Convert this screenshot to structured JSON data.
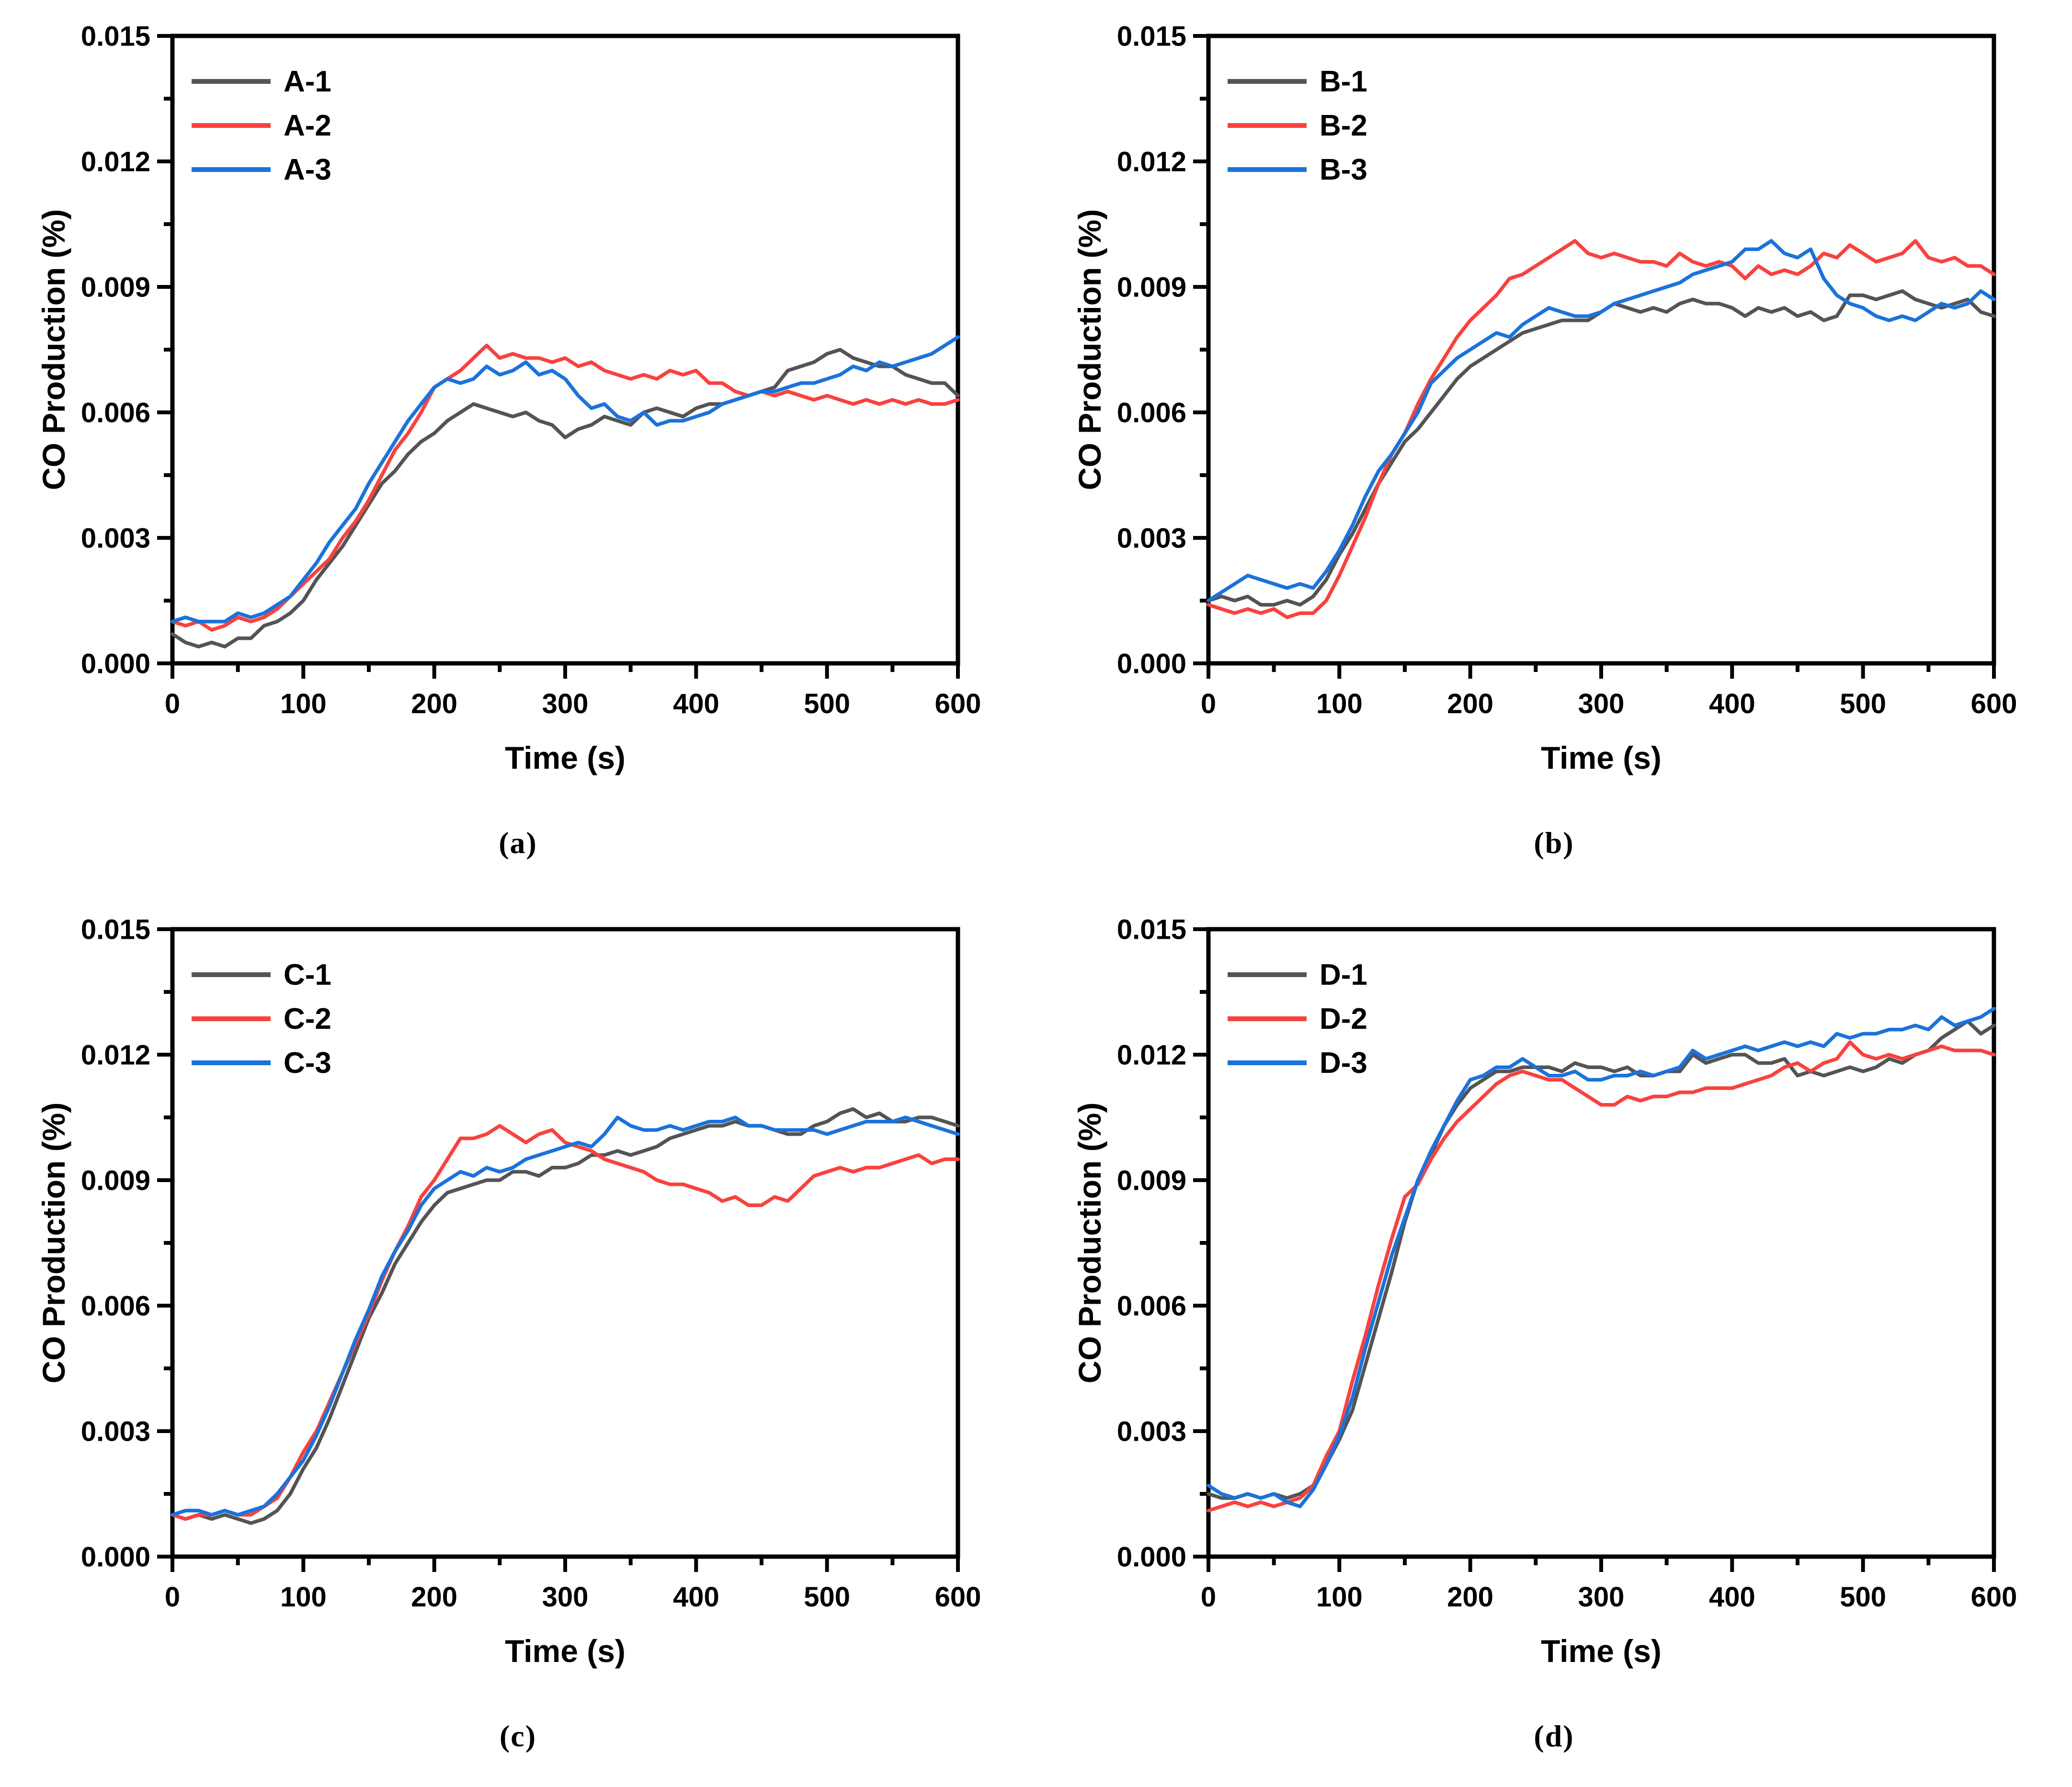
{
  "figure": {
    "background": "#FFFFFF",
    "frame_color": "#000000",
    "text_color": "#000000"
  },
  "chart_data": [
    {
      "type": "line",
      "panel": "a",
      "caption": "(a)",
      "title": "",
      "xlabel": "Time (s)",
      "ylabel": "CO Production (%)",
      "xlim": [
        0,
        600
      ],
      "ylim": [
        0,
        0.015
      ],
      "xticks": [
        0,
        100,
        200,
        300,
        400,
        500,
        600
      ],
      "xtick_labels": [
        "0",
        "100",
        "200",
        "300",
        "400",
        "500",
        "600"
      ],
      "xticks_minor": [
        50,
        150,
        250,
        350,
        450,
        550
      ],
      "yticks": [
        0,
        0.003,
        0.006,
        0.009,
        0.012,
        0.015
      ],
      "ytick_labels": [
        "0.000",
        "0.003",
        "0.006",
        "0.009",
        "0.012",
        "0.015"
      ],
      "yticks_minor": [
        0.0015,
        0.0045,
        0.0075,
        0.0105,
        0.0135
      ],
      "grid": false,
      "legend_position": "top-left",
      "x_start": 0,
      "x_step": 10,
      "y_scale": 0.0001,
      "series": [
        {
          "name": "A-1",
          "color": "#545454",
          "y_x1e4": [
            7,
            5,
            4,
            5,
            4,
            6,
            6,
            9,
            10,
            12,
            15,
            20,
            24,
            28,
            33,
            38,
            43,
            46,
            50,
            53,
            55,
            58,
            60,
            62,
            61,
            60,
            59,
            60,
            58,
            57,
            54,
            56,
            57,
            59,
            58,
            57,
            60,
            61,
            60,
            59,
            61,
            62,
            62,
            63,
            64,
            65,
            66,
            70,
            71,
            72,
            74,
            75,
            73,
            72,
            71,
            71,
            69,
            68,
            67,
            67,
            64
          ]
        },
        {
          "name": "A-2",
          "color": "#F8423E",
          "y_x1e4": [
            10,
            9,
            10,
            8,
            9,
            11,
            10,
            11,
            13,
            16,
            19,
            22,
            25,
            30,
            34,
            39,
            45,
            51,
            55,
            60,
            66,
            68,
            70,
            73,
            76,
            73,
            74,
            73,
            73,
            72,
            73,
            71,
            72,
            70,
            69,
            68,
            69,
            68,
            70,
            69,
            70,
            67,
            67,
            65,
            64,
            65,
            64,
            65,
            64,
            63,
            64,
            63,
            62,
            63,
            62,
            63,
            62,
            63,
            62,
            62,
            63
          ]
        },
        {
          "name": "A-3",
          "color": "#1B72DB",
          "y_x1e4": [
            10,
            11,
            10,
            10,
            10,
            12,
            11,
            12,
            14,
            16,
            20,
            24,
            29,
            33,
            37,
            43,
            48,
            53,
            58,
            62,
            66,
            68,
            67,
            68,
            71,
            69,
            70,
            72,
            69,
            70,
            68,
            64,
            61,
            62,
            59,
            58,
            60,
            57,
            58,
            58,
            59,
            60,
            62,
            63,
            64,
            65,
            65,
            66,
            67,
            67,
            68,
            69,
            71,
            70,
            72,
            71,
            72,
            73,
            74,
            76,
            78
          ]
        }
      ]
    },
    {
      "type": "line",
      "panel": "b",
      "caption": "(b)",
      "title": "",
      "xlabel": "Time (s)",
      "ylabel": "CO Production (%)",
      "xlim": [
        0,
        600
      ],
      "ylim": [
        0,
        0.015
      ],
      "xticks": [
        0,
        100,
        200,
        300,
        400,
        500,
        600
      ],
      "xtick_labels": [
        "0",
        "100",
        "200",
        "300",
        "400",
        "500",
        "600"
      ],
      "xticks_minor": [
        50,
        150,
        250,
        350,
        450,
        550
      ],
      "yticks": [
        0,
        0.003,
        0.006,
        0.009,
        0.012,
        0.015
      ],
      "ytick_labels": [
        "0.000",
        "0.003",
        "0.006",
        "0.009",
        "0.012",
        "0.015"
      ],
      "yticks_minor": [
        0.0015,
        0.0045,
        0.0075,
        0.0105,
        0.0135
      ],
      "grid": false,
      "legend_position": "top-left",
      "x_start": 0,
      "x_step": 10,
      "y_scale": 0.0001,
      "series": [
        {
          "name": "B-1",
          "color": "#545454",
          "y_x1e4": [
            15,
            16,
            15,
            16,
            14,
            14,
            15,
            14,
            16,
            20,
            26,
            31,
            37,
            43,
            48,
            53,
            56,
            60,
            64,
            68,
            71,
            73,
            75,
            77,
            79,
            80,
            81,
            82,
            82,
            82,
            84,
            86,
            85,
            84,
            85,
            84,
            86,
            87,
            86,
            86,
            85,
            83,
            85,
            84,
            85,
            83,
            84,
            82,
            83,
            88,
            88,
            87,
            88,
            89,
            87,
            86,
            85,
            86,
            87,
            84,
            83
          ]
        },
        {
          "name": "B-2",
          "color": "#F8423E",
          "y_x1e4": [
            14,
            13,
            12,
            13,
            12,
            13,
            11,
            12,
            12,
            15,
            21,
            28,
            35,
            43,
            50,
            55,
            62,
            68,
            73,
            78,
            82,
            85,
            88,
            92,
            93,
            95,
            97,
            99,
            101,
            98,
            97,
            98,
            97,
            96,
            96,
            95,
            98,
            96,
            95,
            96,
            95,
            92,
            95,
            93,
            94,
            93,
            95,
            98,
            97,
            100,
            98,
            96,
            97,
            98,
            101,
            97,
            96,
            97,
            95,
            95,
            93
          ]
        },
        {
          "name": "B-3",
          "color": "#1B72DB",
          "y_x1e4": [
            15,
            17,
            19,
            21,
            20,
            19,
            18,
            19,
            18,
            22,
            27,
            33,
            40,
            46,
            50,
            55,
            60,
            67,
            70,
            73,
            75,
            77,
            79,
            78,
            81,
            83,
            85,
            84,
            83,
            83,
            84,
            86,
            87,
            88,
            89,
            90,
            91,
            93,
            94,
            95,
            96,
            99,
            99,
            101,
            98,
            97,
            99,
            92,
            88,
            86,
            85,
            83,
            82,
            83,
            82,
            84,
            86,
            85,
            86,
            89,
            87
          ]
        }
      ]
    },
    {
      "type": "line",
      "panel": "c",
      "caption": "(c)",
      "title": "",
      "xlabel": "Time (s)",
      "ylabel": "CO Production (%)",
      "xlim": [
        0,
        600
      ],
      "ylim": [
        0,
        0.015
      ],
      "xticks": [
        0,
        100,
        200,
        300,
        400,
        500,
        600
      ],
      "xtick_labels": [
        "0",
        "100",
        "200",
        "300",
        "400",
        "500",
        "600"
      ],
      "xticks_minor": [
        50,
        150,
        250,
        350,
        450,
        550
      ],
      "yticks": [
        0,
        0.003,
        0.006,
        0.009,
        0.012,
        0.015
      ],
      "ytick_labels": [
        "0.000",
        "0.003",
        "0.006",
        "0.009",
        "0.012",
        "0.015"
      ],
      "yticks_minor": [
        0.0015,
        0.0045,
        0.0075,
        0.0105,
        0.0135
      ],
      "grid": false,
      "legend_position": "top-left",
      "x_start": 0,
      "x_step": 10,
      "y_scale": 0.0001,
      "series": [
        {
          "name": "C-1",
          "color": "#545454",
          "y_x1e4": [
            10,
            9,
            10,
            9,
            10,
            9,
            8,
            9,
            11,
            15,
            21,
            26,
            33,
            41,
            49,
            57,
            63,
            70,
            75,
            80,
            84,
            87,
            88,
            89,
            90,
            90,
            92,
            92,
            91,
            93,
            93,
            94,
            96,
            96,
            97,
            96,
            97,
            98,
            100,
            101,
            102,
            103,
            103,
            104,
            103,
            103,
            102,
            101,
            101,
            103,
            104,
            106,
            107,
            105,
            106,
            104,
            104,
            105,
            105,
            104,
            103
          ]
        },
        {
          "name": "C-2",
          "color": "#F8423E",
          "y_x1e4": [
            10,
            9,
            10,
            10,
            11,
            10,
            10,
            12,
            14,
            19,
            25,
            30,
            37,
            44,
            51,
            58,
            66,
            73,
            79,
            86,
            90,
            95,
            100,
            100,
            101,
            103,
            101,
            99,
            101,
            102,
            99,
            98,
            97,
            95,
            94,
            93,
            92,
            90,
            89,
            89,
            88,
            87,
            85,
            86,
            84,
            84,
            86,
            85,
            88,
            91,
            92,
            93,
            92,
            93,
            93,
            94,
            95,
            96,
            94,
            95,
            95
          ]
        },
        {
          "name": "C-3",
          "color": "#1B72DB",
          "y_x1e4": [
            10,
            11,
            11,
            10,
            11,
            10,
            11,
            12,
            15,
            19,
            23,
            29,
            36,
            44,
            52,
            59,
            67,
            73,
            78,
            84,
            88,
            90,
            92,
            91,
            93,
            92,
            93,
            95,
            96,
            97,
            98,
            99,
            98,
            101,
            105,
            103,
            102,
            102,
            103,
            102,
            103,
            104,
            104,
            105,
            103,
            103,
            102,
            102,
            102,
            102,
            101,
            102,
            103,
            104,
            104,
            104,
            105,
            104,
            103,
            102,
            101
          ]
        }
      ]
    },
    {
      "type": "line",
      "panel": "d",
      "caption": "(d)",
      "title": "",
      "xlabel": "Time (s)",
      "ylabel": "CO Production (%)",
      "xlim": [
        0,
        600
      ],
      "ylim": [
        0,
        0.015
      ],
      "xticks": [
        0,
        100,
        200,
        300,
        400,
        500,
        600
      ],
      "xtick_labels": [
        "0",
        "100",
        "200",
        "300",
        "400",
        "500",
        "600"
      ],
      "xticks_minor": [
        50,
        150,
        250,
        350,
        450,
        550
      ],
      "yticks": [
        0,
        0.003,
        0.006,
        0.009,
        0.012,
        0.015
      ],
      "ytick_labels": [
        "0.000",
        "0.003",
        "0.006",
        "0.009",
        "0.012",
        "0.015"
      ],
      "yticks_minor": [
        0.0015,
        0.0045,
        0.0075,
        0.0105,
        0.0135
      ],
      "grid": false,
      "legend_position": "top-left",
      "x_start": 0,
      "x_step": 10,
      "y_scale": 0.0001,
      "series": [
        {
          "name": "D-1",
          "color": "#545454",
          "y_x1e4": [
            15,
            14,
            14,
            15,
            14,
            15,
            14,
            15,
            17,
            22,
            28,
            35,
            46,
            57,
            68,
            80,
            90,
            96,
            103,
            108,
            112,
            114,
            116,
            116,
            117,
            117,
            117,
            116,
            118,
            117,
            117,
            116,
            117,
            115,
            115,
            116,
            116,
            120,
            118,
            119,
            120,
            120,
            118,
            118,
            119,
            115,
            116,
            115,
            116,
            117,
            116,
            117,
            119,
            118,
            120,
            121,
            124,
            126,
            128,
            125,
            127
          ]
        },
        {
          "name": "D-2",
          "color": "#F8423E",
          "y_x1e4": [
            11,
            12,
            13,
            12,
            13,
            12,
            13,
            14,
            17,
            24,
            30,
            42,
            53,
            65,
            76,
            86,
            89,
            95,
            100,
            104,
            107,
            110,
            113,
            115,
            116,
            115,
            114,
            114,
            112,
            110,
            108,
            108,
            110,
            109,
            110,
            110,
            111,
            111,
            112,
            112,
            112,
            113,
            114,
            115,
            117,
            118,
            116,
            118,
            119,
            123,
            120,
            119,
            120,
            119,
            120,
            121,
            122,
            121,
            121,
            121,
            120
          ]
        },
        {
          "name": "D-3",
          "color": "#1B72DB",
          "y_x1e4": [
            17,
            15,
            14,
            15,
            14,
            15,
            13,
            12,
            16,
            22,
            29,
            38,
            50,
            61,
            72,
            81,
            90,
            97,
            103,
            109,
            114,
            115,
            117,
            117,
            119,
            117,
            115,
            115,
            116,
            114,
            114,
            115,
            115,
            116,
            115,
            116,
            117,
            121,
            119,
            120,
            121,
            122,
            121,
            122,
            123,
            122,
            123,
            122,
            125,
            124,
            125,
            125,
            126,
            126,
            127,
            126,
            129,
            127,
            128,
            129,
            131
          ]
        }
      ]
    }
  ]
}
